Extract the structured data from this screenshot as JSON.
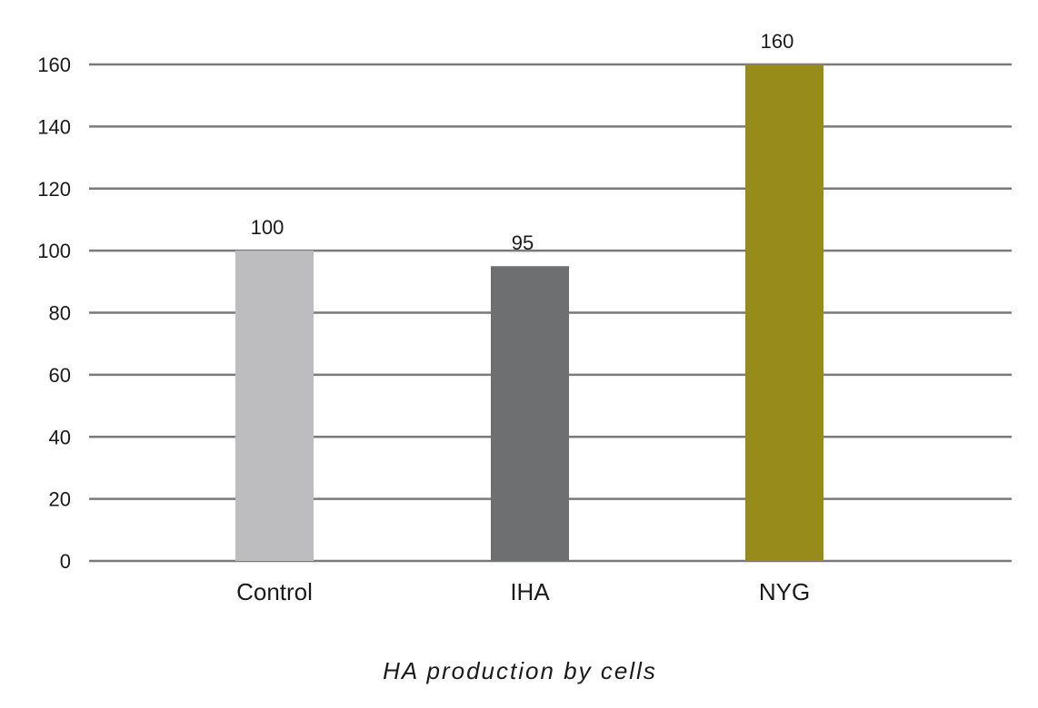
{
  "chart_data": {
    "type": "bar",
    "categories": [
      "Control",
      "IHA",
      "NYG"
    ],
    "values": [
      100,
      95,
      160
    ],
    "data_labels": [
      "100",
      "95",
      "160"
    ],
    "bar_colors": [
      "#bdbdbf",
      "#6e6f71",
      "#978b1a"
    ],
    "title": "",
    "xlabel": "",
    "ylabel": "",
    "ylim": [
      0,
      160
    ],
    "yticks": [
      0,
      20,
      40,
      60,
      80,
      100,
      120,
      140,
      160
    ],
    "grid": true,
    "caption": "HA production by cells"
  },
  "colors": {
    "gridline": "#7a7a7a",
    "text": "#1a1a1a"
  }
}
